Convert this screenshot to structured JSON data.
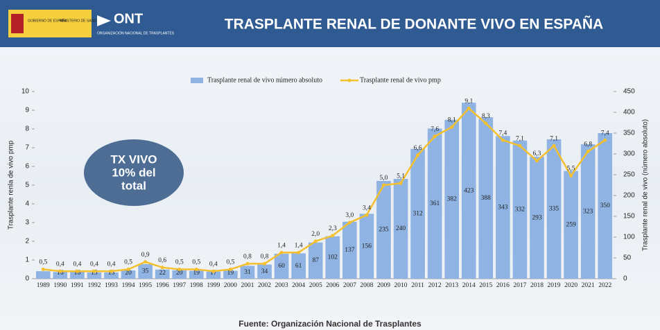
{
  "header": {
    "logo_gov": "GOBIERNO DE ESPAÑA",
    "logo_ministry": "MINISTERIO DE SANIDAD",
    "logo_ont": "ONT",
    "logo_ont_sub": "ORGANIZACIÓN NACIONAL DE TRASPLANTES",
    "title": "TRASPLANTE RENAL DE DONANTE VIVO EN ESPAÑA"
  },
  "callout": [
    "TX VIVO",
    "10% del",
    "total"
  ],
  "footer": "Fuente: Organización Nacional de Trasplantes",
  "chart_data": {
    "type": "bar",
    "categories": [
      "1989",
      "1990",
      "1991",
      "1992",
      "1993",
      "1994",
      "1995",
      "1996",
      "1997",
      "1998",
      "1999",
      "2000",
      "2001",
      "2002",
      "2003",
      "2004",
      "2005",
      "2006",
      "2007",
      "2008",
      "2009",
      "2010",
      "2011",
      "2012",
      "2013",
      "2014",
      "2015",
      "2016",
      "2017",
      "2018",
      "2019",
      "2020",
      "2021",
      "2022"
    ],
    "series": [
      {
        "name": "Trasplante renal de vivo número absoluto",
        "type": "bar",
        "axis": "y2",
        "color": "#8fb3e2",
        "values": [
          18,
          16,
          16,
          15,
          15,
          20,
          35,
          22,
          20,
          19,
          17,
          19,
          31,
          34,
          60,
          61,
          87,
          102,
          137,
          156,
          235,
          240,
          312,
          361,
          382,
          423,
          388,
          343,
          332,
          293,
          335,
          259,
          323,
          350
        ],
        "value_labels": [
          null,
          "16",
          "16",
          "15",
          "15",
          "20",
          "35",
          "22",
          "20",
          "19",
          "17",
          "19",
          "31",
          "34",
          "60",
          "61",
          "87",
          "102",
          "137",
          "156",
          "235",
          "240",
          "312",
          "361",
          "382",
          "423",
          "388",
          "343",
          "332",
          "293",
          "335",
          "259",
          "323",
          "350"
        ]
      },
      {
        "name": "Trasplante renal de vivo pmp",
        "type": "line",
        "axis": "y",
        "color": "#f5c02e",
        "values": [
          0.5,
          0.4,
          0.4,
          0.4,
          0.4,
          0.5,
          0.9,
          0.6,
          0.5,
          0.5,
          0.4,
          0.5,
          0.8,
          0.8,
          1.4,
          1.4,
          2.0,
          2.3,
          3.0,
          3.4,
          5.0,
          5.1,
          6.6,
          7.6,
          8.1,
          9.1,
          8.3,
          7.4,
          7.1,
          6.3,
          7.1,
          5.5,
          6.8,
          7.4
        ],
        "value_labels": [
          "0,5",
          "0,4",
          "0,4",
          "0,4",
          "0,4",
          "0,5",
          "0,9",
          "0,6",
          "0,5",
          "0,5",
          "0,4",
          "0,5",
          "0,8",
          "0,8",
          "1,4",
          "1,4",
          "2,0",
          "2,3",
          "3,0",
          "3,4",
          "5,0",
          "5,1",
          "6,6",
          "7,6",
          "8,1",
          "9,1",
          "8,3",
          "7,4",
          "7,1",
          "6,3",
          "7,1",
          "5,5",
          "6,8",
          "7,4"
        ]
      }
    ],
    "ylabel": "Trasplante renla de vivo pmp",
    "y2label": "Trasplante renal de vivo (número absoluto)",
    "ylim": [
      0,
      10
    ],
    "yticks": [
      0,
      1,
      2,
      3,
      4,
      5,
      6,
      7,
      8,
      9,
      10
    ],
    "y2lim": [
      0,
      450
    ],
    "y2ticks": [
      0,
      50,
      100,
      150,
      200,
      250,
      300,
      350,
      400,
      450
    ],
    "legend": "top"
  }
}
